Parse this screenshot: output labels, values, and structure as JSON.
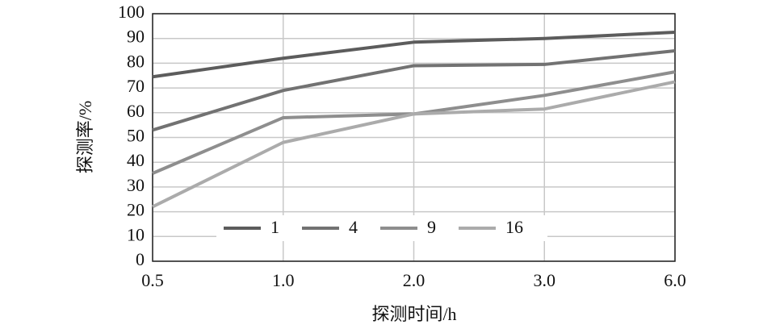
{
  "chart_data": {
    "type": "line",
    "x_label": "探测时间/h",
    "y_label": "探测率/%",
    "categories": [
      "0.5",
      "1.0",
      "2.0",
      "3.0",
      "6.0"
    ],
    "series": [
      {
        "name": "1",
        "color": "#5c5c5c",
        "values": [
          74.5,
          82,
          88.5,
          90,
          92.5
        ]
      },
      {
        "name": "4",
        "color": "#727272",
        "values": [
          53,
          69,
          79,
          79.5,
          85
        ]
      },
      {
        "name": "9",
        "color": "#8e8e8e",
        "values": [
          35.5,
          58,
          59.5,
          67,
          76.5
        ]
      },
      {
        "name": "16",
        "color": "#ababab",
        "values": [
          22,
          48,
          59.5,
          61.5,
          72.5
        ]
      }
    ],
    "ylim": [
      0,
      100
    ],
    "yticks": [
      0,
      10,
      20,
      30,
      40,
      50,
      60,
      70,
      80,
      90,
      100
    ],
    "grid": true,
    "legend": "bottom"
  }
}
